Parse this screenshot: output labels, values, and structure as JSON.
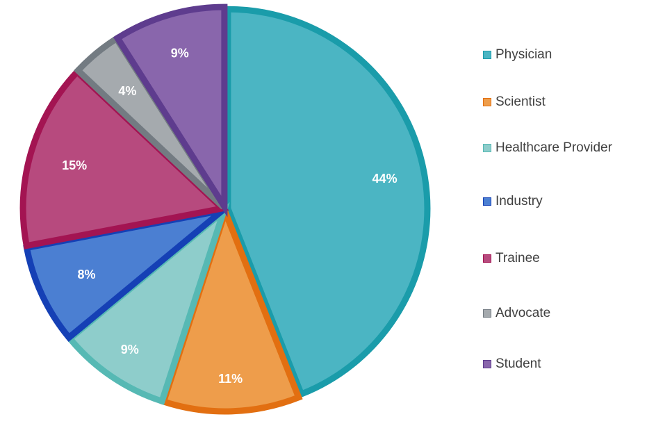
{
  "chart_data": {
    "type": "pie",
    "title": "",
    "legend_position": "right",
    "slices": [
      {
        "label": "Physician",
        "value": 44,
        "value_label": "44%",
        "fill": "#4BB5C3",
        "border": "#1A9CAA"
      },
      {
        "label": "Scientist",
        "value": 11,
        "value_label": "11%",
        "fill": "#EE9D4B",
        "border": "#E26F11"
      },
      {
        "label": "Healthcare Provider",
        "value": 9,
        "value_label": "9%",
        "fill": "#8ECDCB",
        "border": "#56B9B4"
      },
      {
        "label": "Industry",
        "value": 8,
        "value_label": "8%",
        "fill": "#4B7FD2",
        "border": "#1540B5"
      },
      {
        "label": "Trainee",
        "value": 15,
        "value_label": "15%",
        "fill": "#B74A7E",
        "border": "#A31452"
      },
      {
        "label": "Advocate",
        "value": 4,
        "value_label": "4%",
        "fill": "#A5AAAE",
        "border": "#737B82"
      },
      {
        "label": "Student",
        "value": 9,
        "value_label": "9%",
        "fill": "#8966AC",
        "border": "#5E3C8E"
      }
    ]
  }
}
